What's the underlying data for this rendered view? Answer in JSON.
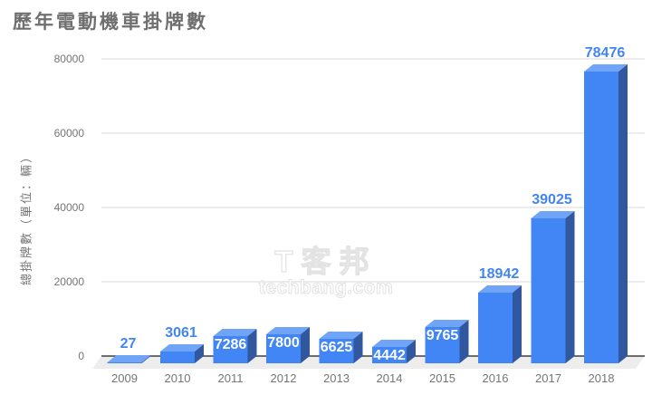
{
  "title": "歷年電動機車掛牌數",
  "watermark": {
    "line1": "T客邦",
    "line2": "techbang.com"
  },
  "chart_data": {
    "type": "bar",
    "style": "3d-column",
    "title": "歷年電動機車掛牌數",
    "categories": [
      "2009",
      "2010",
      "2011",
      "2012",
      "2013",
      "2014",
      "2015",
      "2016",
      "2017",
      "2018"
    ],
    "values": [
      27,
      3061,
      7286,
      7800,
      6625,
      4442,
      9765,
      18942,
      39025,
      78476
    ],
    "data_labels": [
      "27",
      "3061",
      "7286",
      "7800",
      "6625",
      "4442",
      "9765",
      "18942",
      "39025",
      "78476"
    ],
    "label_positions": [
      "above",
      "above",
      "inside",
      "inside",
      "inside",
      "inside",
      "inside",
      "above",
      "above",
      "above"
    ],
    "xlabel": "",
    "ylabel": "總掛牌數（單位：輛）",
    "yticks": [
      0,
      20000,
      40000,
      60000,
      80000
    ],
    "ylim": [
      0,
      80000
    ],
    "grid": true,
    "legend": "none",
    "colors": {
      "bar_front": "#4285F4",
      "bar_top": "#6FA4F7",
      "bar_side": "#31589F",
      "label_above": "#4285F4",
      "label_inside": "#FFFFFF",
      "gridline": "#DADADA",
      "baseline": "#404040",
      "axis_text": "#757575",
      "title_text": "#6F6F6F",
      "floor": "#EDEDED"
    }
  }
}
